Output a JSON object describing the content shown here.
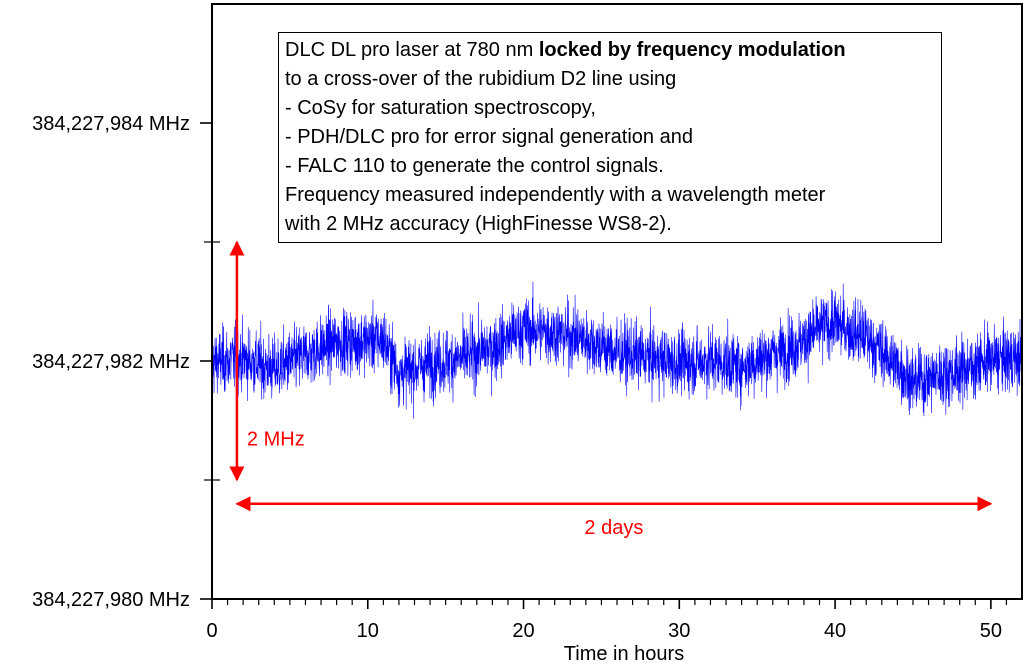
{
  "chart_data": {
    "type": "line",
    "title": "",
    "xlabel": "Time in hours",
    "ylabel": "",
    "xlim": [
      0,
      52
    ],
    "ylim": [
      384227980,
      384227985
    ],
    "x_ticks": [
      0,
      10,
      20,
      30,
      40,
      50
    ],
    "x_tick_labels": [
      "0",
      "10",
      "20",
      "30",
      "40",
      "50"
    ],
    "x_minor_ticks": [
      1,
      2,
      3,
      4,
      5,
      6,
      7,
      8,
      9,
      11,
      12,
      13,
      14,
      15,
      16,
      17,
      18,
      19,
      21,
      22,
      23,
      24,
      25,
      26,
      27,
      28,
      29,
      31,
      32,
      33,
      34,
      35,
      36,
      37,
      38,
      39,
      41,
      42,
      43,
      44,
      45,
      46,
      47,
      48,
      49,
      51
    ],
    "y_ticks": [
      384227980,
      384227982,
      384227984
    ],
    "y_tick_labels": [
      "384,227,980 MHz",
      "384,227,982 MHz",
      "384,227,984 MHz"
    ],
    "y_minor_ticks": [
      384227981,
      384227983
    ],
    "series": [
      {
        "color": "#0000ff",
        "x": [
          0,
          2,
          4,
          6,
          8,
          10,
          11,
          12,
          14,
          16,
          18,
          20,
          22,
          24,
          26,
          28,
          30,
          32,
          34,
          36,
          38,
          39,
          40,
          41,
          42,
          44,
          45,
          46,
          48,
          50,
          52
        ],
        "y": [
          384227981.99,
          384227982.02,
          384227981.93,
          384227982.05,
          384227982.16,
          384227982.17,
          384227982.18,
          384227981.9,
          384227981.98,
          384227982.02,
          384227982.11,
          384227982.27,
          384227982.24,
          384227982.18,
          384227982.07,
          384227982.03,
          384227981.98,
          384227982.01,
          384227981.95,
          384227982.06,
          384227982.16,
          384227982.28,
          384227982.32,
          384227982.25,
          384227982.2,
          384227981.96,
          384227981.82,
          384227981.86,
          384227981.92,
          384227982.01,
          384227982.02
        ],
        "noise_amplitude_mhz": 0.45
      }
    ],
    "grid": false,
    "legend": "none",
    "annotations": {
      "vertical_arrow": {
        "x_hours": 1.6,
        "y_from": 384227981,
        "y_to": 384227983,
        "label": "2 MHz",
        "color": "#ff0000"
      },
      "horizontal_arrow": {
        "x_from": 1.6,
        "x_to": 50,
        "y_value": 384227980.8,
        "label": "2 days",
        "color": "#ff0000"
      }
    }
  },
  "info_box": {
    "line1_normal": "DLC DL pro laser at 780 nm ",
    "line1_bold": "locked by frequency modulation",
    "lines": [
      "to a cross-over of the rubidium D2 line using",
      "- CoSy for saturation spectroscopy,",
      "- PDH/DLC pro for error signal generation and",
      "- FALC 110 to generate the control signals.",
      "Frequency measured independently with a wavelength meter",
      "with 2 MHz accuracy (HighFinesse WS8-2)."
    ]
  },
  "colors": {
    "series": "#0000ff",
    "annotation": "#ff0000",
    "axis": "#000000"
  }
}
